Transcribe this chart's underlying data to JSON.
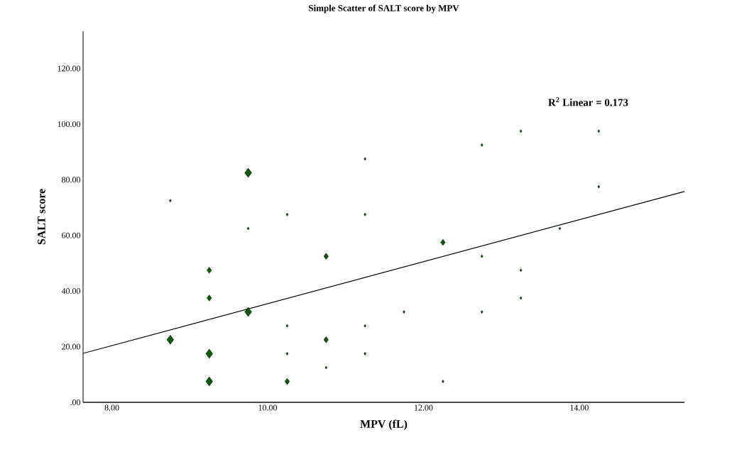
{
  "chart_data": {
    "type": "bubble",
    "title": "Simple Scatter of SALT score by MPV",
    "xlabel": "MPV (fL)",
    "ylabel": "SALT score",
    "annotations": [
      "R$^{2}$ Linear = 0.173"
    ],
    "series": [
      {
        "color": "#0b5a0b",
        "marker": "diamond",
        "x": [
          8.75,
          8.75,
          9.25,
          9.25,
          9.25,
          9.25,
          9.75,
          9.75,
          9.75,
          10.25,
          10.25,
          10.25,
          10.25,
          10.75,
          10.75,
          10.75,
          11.25,
          11.25,
          11.25,
          11.25,
          11.75,
          12.25,
          12.25,
          12.75,
          12.75,
          12.75,
          13.25,
          13.25,
          13.25,
          13.75,
          14.25,
          14.25
        ],
        "values": [
          72.5,
          22.5,
          47.5,
          37.5,
          17.5,
          7.5,
          82.5,
          62.5,
          32.5,
          67.5,
          27.5,
          17.5,
          7.5,
          52.5,
          22.5,
          12.5,
          87.5,
          67.5,
          27.5,
          17.5,
          32.5,
          57.5,
          7.5,
          92.5,
          52.5,
          32.5,
          97.5,
          47.5,
          37.5,
          62.5,
          97.5,
          77.5
        ],
        "sizes": [
          0.1,
          1,
          0.45,
          0.45,
          1,
          1,
          1,
          0.1,
          1,
          0.1,
          0.1,
          0.1,
          0.45,
          0.45,
          0.45,
          0.1,
          0.1,
          0.1,
          0.1,
          0.1,
          0.1,
          0.45,
          0.1,
          0.1,
          0.1,
          0.1,
          0.1,
          0.1,
          0.1,
          0.1,
          0.1,
          0.1
        ]
      },
      {
        "type": "line",
        "color": "#000000",
        "x": [
          7.63,
          15.35
        ],
        "values": [
          17.6,
          75.8
        ]
      }
    ],
    "xlim": [
      7.63,
      15.35
    ],
    "ylim": [
      0,
      133.4
    ],
    "xticks": [
      {
        "value": 8,
        "label": "8.00"
      },
      {
        "value": 10,
        "label": "10.00"
      },
      {
        "value": 12,
        "label": "12.00"
      },
      {
        "value": 14,
        "label": "14.00"
      }
    ],
    "yticks": [
      {
        "value": 0,
        "label": ".00"
      },
      {
        "value": 20,
        "label": "20.00"
      },
      {
        "value": 40,
        "label": "40.00"
      },
      {
        "value": 60,
        "label": "60.00"
      },
      {
        "value": 80,
        "label": "80.00"
      },
      {
        "value": 100,
        "label": "100.00"
      },
      {
        "value": 120,
        "label": "120.00"
      }
    ]
  }
}
